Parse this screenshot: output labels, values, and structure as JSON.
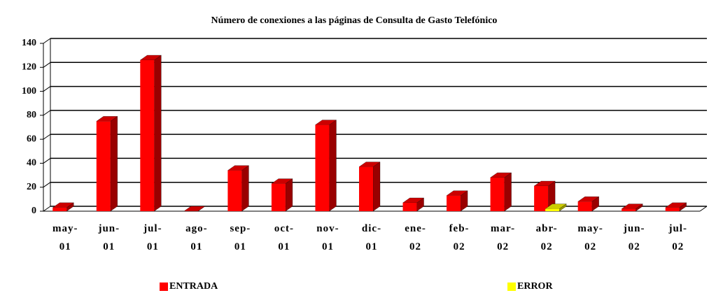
{
  "chart_data": {
    "type": "bar3d",
    "title": "Número de conexiones a las páginas de Consulta de Gasto Telefónico",
    "categories": [
      "may-\n01",
      "jun-\n01",
      "jul-\n01",
      "ago-\n01",
      "sep-\n01",
      "oct-\n01",
      "nov-\n01",
      "dic-\n01",
      "ene-\n02",
      "feb-\n02",
      "mar-\n02",
      "abr-\n02",
      "may-\n02",
      "jun-\n02",
      "jul-\n02"
    ],
    "series": [
      {
        "name": "ENTRADA",
        "color": "#ff0000",
        "values": [
          3,
          75,
          126,
          0,
          34,
          23,
          72,
          37,
          7,
          13,
          28,
          21,
          8,
          2,
          3
        ]
      },
      {
        "name": "ERROR",
        "color": "#ffff00",
        "values": [
          0,
          0,
          0,
          0,
          0,
          0,
          0,
          0,
          0,
          0,
          0,
          2,
          0,
          0,
          0
        ]
      }
    ],
    "ylim": [
      0,
      140
    ],
    "yticks": [
      0,
      20,
      40,
      60,
      80,
      100,
      120,
      140
    ],
    "grid": true
  }
}
